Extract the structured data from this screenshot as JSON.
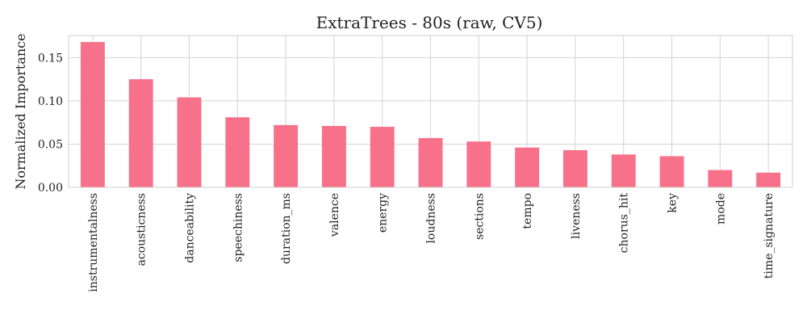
{
  "chart_data": {
    "type": "bar",
    "title": "ExtraTrees - 80s (raw, CV5)",
    "xlabel": "",
    "ylabel": "Normalized Importance",
    "categories": [
      "instrumentalness",
      "acousticness",
      "danceability",
      "speechiness",
      "duration_ms",
      "valence",
      "energy",
      "loudness",
      "sections",
      "tempo",
      "liveness",
      "chorus_hit",
      "key",
      "mode",
      "time_signature"
    ],
    "values": [
      0.168,
      0.125,
      0.104,
      0.081,
      0.072,
      0.071,
      0.07,
      0.057,
      0.053,
      0.046,
      0.043,
      0.038,
      0.036,
      0.02,
      0.017
    ],
    "ylim": [
      0,
      0.1755
    ],
    "yticks": [
      "0.00",
      "0.05",
      "0.10",
      "0.15"
    ],
    "grid": true,
    "bar_color": "#f7718a"
  }
}
